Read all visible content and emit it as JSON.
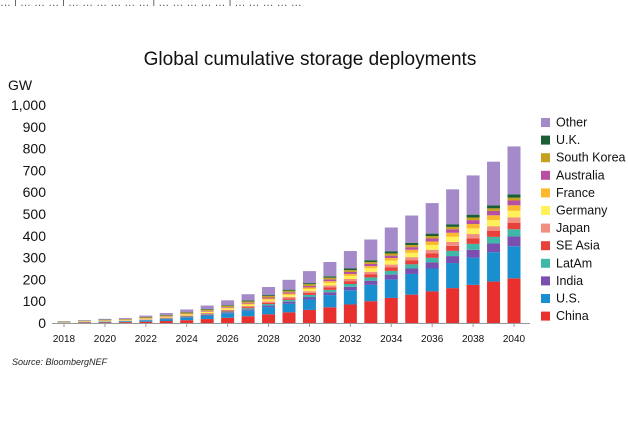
{
  "chart_data": {
    "type": "bar",
    "stacked": true,
    "title": "Global cumulative storage deployments",
    "ylabel": "GW",
    "ylim": [
      0,
      1000
    ],
    "yticks": [
      "0",
      "100",
      "200",
      "300",
      "400",
      "500",
      "600",
      "700",
      "800",
      "900",
      "1,000"
    ],
    "ytick_values": [
      0,
      100,
      200,
      300,
      400,
      500,
      600,
      700,
      800,
      900,
      1000
    ],
    "categories": [
      2018,
      2019,
      2020,
      2021,
      2022,
      2023,
      2024,
      2025,
      2026,
      2027,
      2028,
      2029,
      2030,
      2031,
      2032,
      2033,
      2034,
      2035,
      2036,
      2037,
      2038,
      2039,
      2040
    ],
    "xtick_labels": [
      "2018",
      "2020",
      "2022",
      "2024",
      "2026",
      "2028",
      "2030",
      "2032",
      "2034",
      "2036",
      "2038",
      "2040"
    ],
    "legend_position": "right",
    "series": [
      {
        "name": "China",
        "color": "#e8312f",
        "values": [
          1,
          2,
          3,
          4,
          6,
          9,
          13,
          18,
          24,
          31,
          40,
          49,
          60,
          72,
          85,
          100,
          115,
          130,
          145,
          160,
          175,
          190,
          205
        ]
      },
      {
        "name": "U.S.",
        "color": "#1a8fd0",
        "values": [
          1,
          2,
          3,
          4,
          6,
          9,
          12,
          16,
          21,
          27,
          33,
          40,
          48,
          56,
          65,
          75,
          85,
          95,
          105,
          115,
          125,
          135,
          147
        ]
      },
      {
        "name": "India",
        "color": "#7a4fb0",
        "values": [
          0,
          0,
          0,
          0,
          1,
          1,
          2,
          3,
          4,
          5,
          7,
          9,
          11,
          13,
          16,
          19,
          22,
          25,
          28,
          32,
          36,
          40,
          45
        ]
      },
      {
        "name": "LatAm",
        "color": "#3fb8a8",
        "values": [
          0,
          0,
          1,
          1,
          1,
          2,
          3,
          3,
          4,
          5,
          7,
          8,
          10,
          11,
          13,
          15,
          17,
          19,
          21,
          24,
          27,
          30,
          33
        ]
      },
      {
        "name": "SE Asia",
        "color": "#e8403a",
        "values": [
          0,
          0,
          0,
          1,
          1,
          2,
          2,
          3,
          4,
          5,
          6,
          7,
          9,
          11,
          13,
          15,
          17,
          19,
          21,
          23,
          25,
          27,
          30
        ]
      },
      {
        "name": "Japan",
        "color": "#f08f80",
        "values": [
          1,
          1,
          1,
          1,
          2,
          2,
          3,
          3,
          4,
          5,
          6,
          7,
          8,
          9,
          10,
          11,
          12,
          14,
          16,
          18,
          20,
          22,
          25
        ]
      },
      {
        "name": "Germany",
        "color": "#fff15a",
        "values": [
          1,
          2,
          2,
          2,
          3,
          3,
          4,
          5,
          6,
          7,
          8,
          9,
          10,
          12,
          14,
          16,
          18,
          20,
          22,
          24,
          26,
          28,
          30
        ]
      },
      {
        "name": "France",
        "color": "#fdb92d",
        "values": [
          0,
          0,
          1,
          1,
          1,
          1,
          2,
          2,
          3,
          4,
          5,
          6,
          7,
          8,
          9,
          10,
          12,
          14,
          16,
          18,
          20,
          22,
          25
        ]
      },
      {
        "name": "Australia",
        "color": "#b74fa3",
        "values": [
          0,
          1,
          1,
          1,
          1,
          2,
          2,
          3,
          3,
          4,
          5,
          6,
          7,
          8,
          9,
          10,
          11,
          12,
          14,
          16,
          18,
          20,
          22
        ]
      },
      {
        "name": "South Korea",
        "color": "#c6a120",
        "values": [
          2,
          2,
          3,
          3,
          4,
          4,
          5,
          5,
          6,
          6,
          7,
          7,
          8,
          8,
          9,
          9,
          10,
          10,
          11,
          11,
          12,
          12,
          13
        ]
      },
      {
        "name": "U.K.",
        "color": "#1a5e36",
        "values": [
          1,
          1,
          1,
          1,
          2,
          2,
          2,
          3,
          3,
          4,
          4,
          5,
          5,
          6,
          7,
          8,
          9,
          10,
          11,
          12,
          13,
          14,
          15
        ]
      },
      {
        "name": "Other",
        "color": "#a48ac8",
        "values": [
          1,
          2,
          3,
          4,
          6,
          9,
          12,
          16,
          22,
          29,
          37,
          45,
          55,
          66,
          80,
          95,
          110,
          125,
          140,
          160,
          180,
          200,
          220
        ]
      }
    ]
  },
  "source": "Source: BloombergNEF",
  "top_strip_text": "… | … … … | … … … … … … | … … … … … | … … … … …"
}
